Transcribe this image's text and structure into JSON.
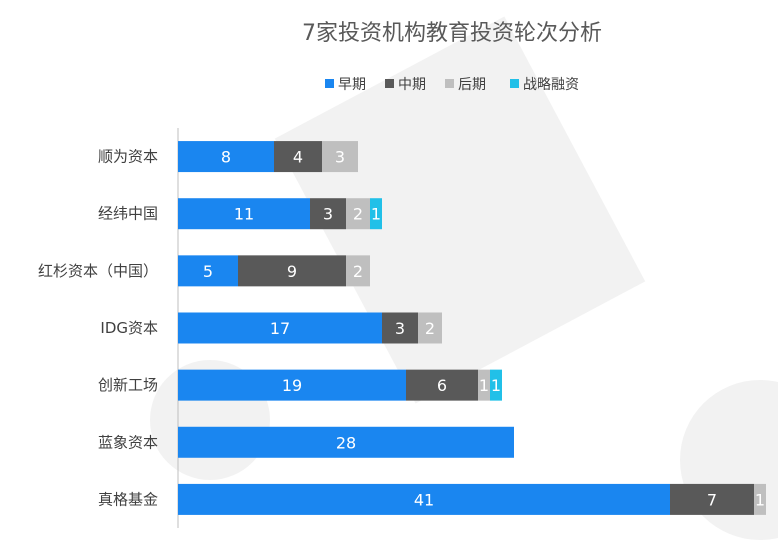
{
  "chart_data": {
    "type": "bar",
    "orientation": "horizontal",
    "stacked": true,
    "title": "7家投资机构教育投资轮次分析",
    "categories": [
      "顺为资本",
      "经纬中国",
      "红杉资本（中国）",
      "IDG资本",
      "创新工场",
      "蓝象资本",
      "真格基金"
    ],
    "series": [
      {
        "name": "早期",
        "color": "#1a86f0",
        "values": [
          8,
          11,
          5,
          17,
          19,
          28,
          41
        ]
      },
      {
        "name": "中期",
        "color": "#595959",
        "values": [
          4,
          3,
          9,
          3,
          6,
          0,
          7
        ]
      },
      {
        "name": "后期",
        "color": "#bfbfbf",
        "values": [
          3,
          2,
          2,
          2,
          1,
          0,
          1
        ]
      },
      {
        "name": "战略融资",
        "color": "#21c0e8",
        "values": [
          0,
          1,
          0,
          0,
          1,
          0,
          0
        ]
      }
    ],
    "xlim": [
      0,
      49
    ],
    "grid": false,
    "legend_position": "top"
  }
}
